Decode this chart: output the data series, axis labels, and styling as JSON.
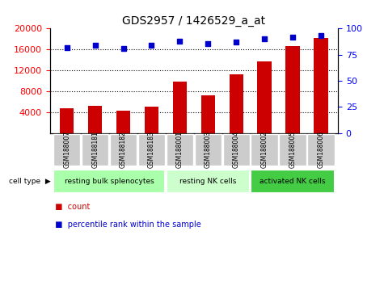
{
  "title": "GDS2957 / 1426529_a_at",
  "samples": [
    "GSM188007",
    "GSM188181",
    "GSM188182",
    "GSM188183",
    "GSM188001",
    "GSM188003",
    "GSM188004",
    "GSM188002",
    "GSM188005",
    "GSM188006"
  ],
  "counts": [
    4800,
    5200,
    4300,
    5100,
    9800,
    7200,
    11200,
    13800,
    16700,
    18200
  ],
  "percentile_ranks": [
    82,
    84,
    81,
    84,
    88,
    86,
    87,
    90,
    92,
    93
  ],
  "ylim_left": [
    0,
    20000
  ],
  "ylim_right": [
    0,
    100
  ],
  "yticks_left": [
    4000,
    8000,
    12000,
    16000,
    20000
  ],
  "yticks_right": [
    0,
    25,
    50,
    75,
    100
  ],
  "bar_color": "#cc0000",
  "dot_color": "#0000cc",
  "groups": [
    {
      "label": "resting bulk splenocytes",
      "start": 0,
      "end": 4,
      "color": "#aaffaa"
    },
    {
      "label": "resting NK cells",
      "start": 4,
      "end": 7,
      "color": "#ccffcc"
    },
    {
      "label": "activated NK cells",
      "start": 7,
      "end": 10,
      "color": "#44cc44"
    }
  ],
  "group_header": "cell type",
  "legend_count_label": "count",
  "legend_pct_label": "percentile rank within the sample",
  "tick_bg_color": "#cccccc",
  "plot_bg_color": "#ffffff"
}
